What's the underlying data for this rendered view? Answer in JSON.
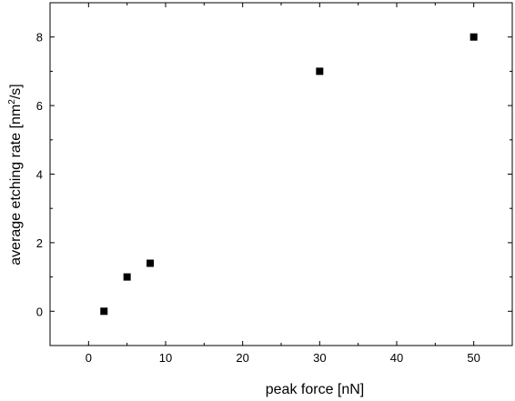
{
  "chart_data": {
    "type": "scatter",
    "title": "",
    "xlabel": "peak force [nN]",
    "ylabel_prefix": "average etching rate [nm",
    "ylabel_superscript": "2",
    "ylabel_suffix": "/s]",
    "xlim": [
      -5,
      55
    ],
    "ylim": [
      -1,
      9
    ],
    "x_ticks": [
      0,
      10,
      20,
      30,
      40,
      50
    ],
    "y_ticks": [
      0,
      2,
      4,
      6,
      8
    ],
    "grid": false,
    "marker": "square",
    "marker_color": "#000000",
    "series": [
      {
        "x": [
          2,
          5,
          8,
          30,
          50
        ],
        "y": [
          0,
          1,
          1.4,
          7,
          8
        ]
      }
    ]
  }
}
